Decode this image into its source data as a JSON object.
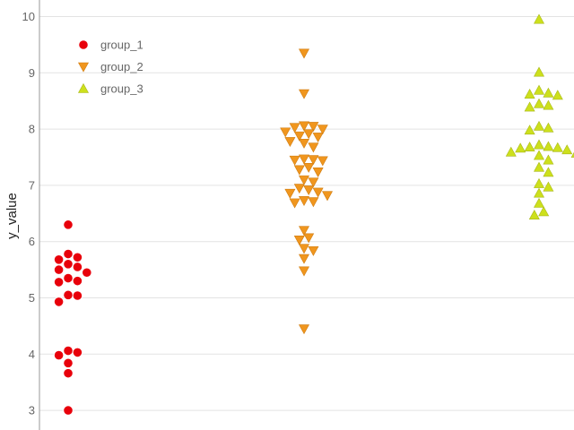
{
  "chart_data": {
    "type": "scatter",
    "title": "",
    "xlabel": "",
    "ylabel": "y_value",
    "ylim": [
      2.8,
      10.2
    ],
    "yticks": [
      3,
      4,
      5,
      6,
      7,
      8,
      9,
      10
    ],
    "grid": "horizontal",
    "legend_position": "top-left",
    "series": [
      {
        "name": "group_1",
        "marker": "circle",
        "color": "#e8000b",
        "values": [
          6.3,
          5.78,
          5.72,
          5.68,
          5.6,
          5.55,
          5.5,
          5.45,
          5.35,
          5.3,
          5.28,
          5.05,
          5.04,
          4.93,
          4.06,
          4.03,
          3.98,
          3.84,
          3.66,
          3.0
        ]
      },
      {
        "name": "group_2",
        "marker": "triangle-down",
        "color": "#f0961e",
        "values": [
          9.35,
          8.63,
          8.06,
          8.05,
          8.03,
          8.0,
          7.95,
          7.92,
          7.88,
          7.86,
          7.78,
          7.75,
          7.68,
          7.47,
          7.46,
          7.45,
          7.44,
          7.32,
          7.28,
          7.24,
          7.1,
          7.06,
          6.95,
          6.92,
          6.88,
          6.86,
          6.82,
          6.73,
          6.71,
          6.69,
          6.2,
          6.07,
          6.03,
          5.88,
          5.84,
          5.7,
          5.48,
          4.45
        ]
      },
      {
        "name": "group_3",
        "marker": "triangle-up",
        "color": "#cde01c",
        "values": [
          9.95,
          9.01,
          8.69,
          8.64,
          8.62,
          8.6,
          8.45,
          8.42,
          8.39,
          8.05,
          8.02,
          7.98,
          7.72,
          7.69,
          7.68,
          7.67,
          7.66,
          7.63,
          7.59,
          7.57,
          7.53,
          7.45,
          7.32,
          7.23,
          7.03,
          6.97,
          6.86,
          6.68,
          6.53,
          6.47
        ]
      }
    ]
  }
}
